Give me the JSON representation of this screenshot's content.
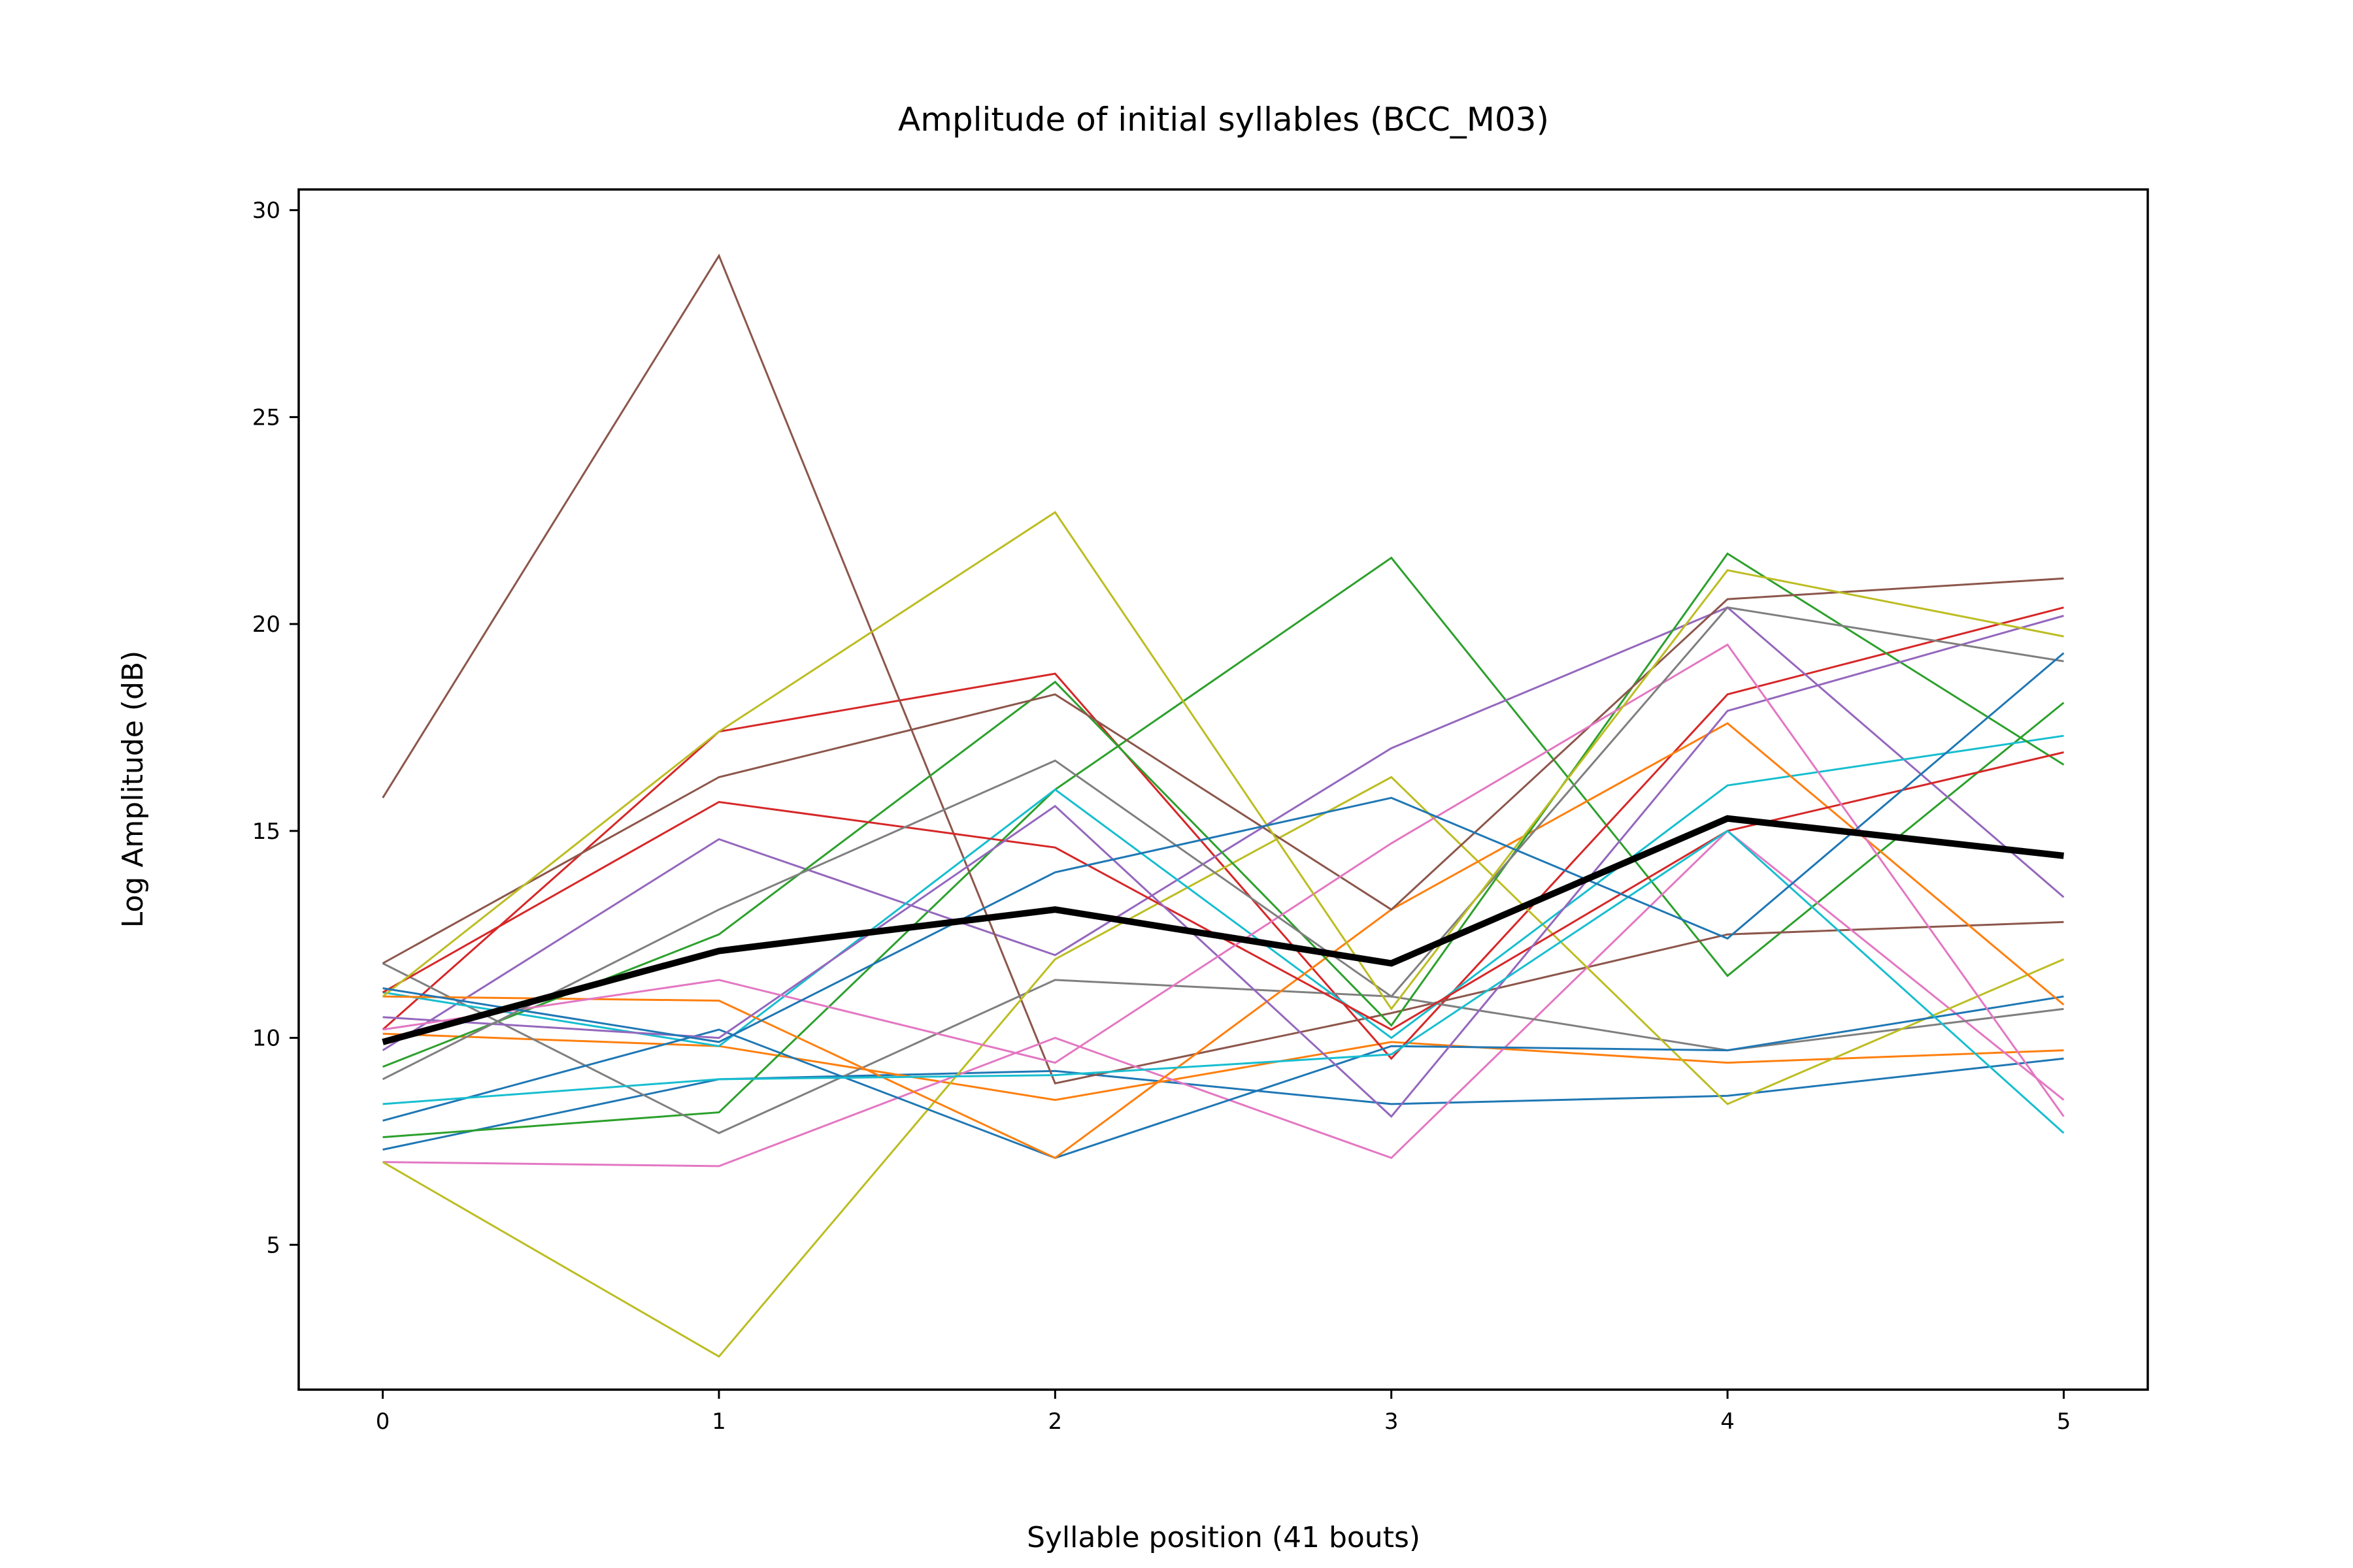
{
  "chart_data": {
    "type": "line",
    "title": "Amplitude of initial syllables (BCC_M03)",
    "xlabel": "Syllable position (41 bouts)",
    "ylabel": "Log Amplitude (dB)",
    "x": [
      0,
      1,
      2,
      3,
      4,
      5
    ],
    "xlim": [
      -0.25,
      5.25
    ],
    "ylim": [
      1.5,
      30.5
    ],
    "xticks": [
      "0",
      "1",
      "2",
      "3",
      "4",
      "5"
    ],
    "yticks": [
      "5",
      "10",
      "15",
      "20",
      "25",
      "30"
    ],
    "grid": false,
    "colors": {
      "blue": "#1f77b4",
      "orange": "#ff7f0e",
      "green": "#2ca02c",
      "red": "#d62728",
      "purple": "#9467bd",
      "brown": "#8c564b",
      "pink": "#e377c2",
      "gray": "#7f7f7f",
      "olive": "#bcbd22",
      "cyan": "#17becf",
      "mean": "#000000"
    },
    "series": [
      {
        "color": "#1f77b4",
        "values": [
          7.3,
          9.0,
          9.2,
          8.4,
          8.6,
          9.5
        ]
      },
      {
        "color": "#ff7f0e",
        "values": [
          10.1,
          9.8,
          8.5,
          9.9,
          9.4,
          9.7
        ]
      },
      {
        "color": "#2ca02c",
        "values": [
          7.6,
          8.2,
          16.0,
          21.6,
          11.5,
          18.1
        ]
      },
      {
        "color": "#d62728",
        "values": [
          10.2,
          17.4,
          18.8,
          9.5,
          18.3,
          20.4
        ]
      },
      {
        "color": "#9467bd",
        "values": [
          9.7,
          14.8,
          12.0,
          17.0,
          20.4,
          13.4
        ]
      },
      {
        "color": "#8c564b",
        "values": [
          15.8,
          28.9,
          8.9,
          10.6,
          12.5,
          12.8
        ]
      },
      {
        "color": "#e377c2",
        "values": [
          7.0,
          6.9,
          10.0,
          7.1,
          15.0,
          8.5
        ]
      },
      {
        "color": "#7f7f7f",
        "values": [
          11.8,
          7.7,
          11.4,
          11.0,
          9.7,
          10.7
        ]
      },
      {
        "color": "#bcbd22",
        "values": [
          7.0,
          2.3,
          11.9,
          16.3,
          8.4,
          11.9
        ]
      },
      {
        "color": "#17becf",
        "values": [
          11.1,
          9.8,
          16.0,
          10.0,
          16.1,
          17.3
        ]
      },
      {
        "color": "#1f77b4",
        "values": [
          8.0,
          10.2,
          7.1,
          9.8,
          9.7,
          11.0
        ]
      },
      {
        "color": "#ff7f0e",
        "values": [
          11.0,
          10.9,
          7.1,
          13.1,
          17.6,
          10.8
        ]
      },
      {
        "color": "#2ca02c",
        "values": [
          9.3,
          12.5,
          18.6,
          10.3,
          21.7,
          16.6
        ]
      },
      {
        "color": "#d62728",
        "values": [
          11.1,
          15.7,
          14.6,
          10.2,
          15.0,
          16.9
        ]
      },
      {
        "color": "#9467bd",
        "values": [
          10.5,
          10.0,
          15.6,
          8.1,
          17.9,
          20.2
        ]
      },
      {
        "color": "#8c564b",
        "values": [
          11.8,
          16.3,
          18.3,
          13.1,
          20.6,
          21.1
        ]
      },
      {
        "color": "#e377c2",
        "values": [
          10.2,
          11.4,
          9.4,
          14.7,
          19.5,
          8.1
        ]
      },
      {
        "color": "#7f7f7f",
        "values": [
          9.0,
          13.1,
          16.7,
          11.0,
          20.4,
          19.1
        ]
      },
      {
        "color": "#bcbd22",
        "values": [
          11.0,
          17.4,
          22.7,
          10.7,
          21.3,
          19.7
        ]
      },
      {
        "color": "#17becf",
        "values": [
          8.4,
          9.0,
          9.1,
          9.6,
          15.0,
          7.7
        ]
      },
      {
        "color": "#1f77b4",
        "values": [
          11.2,
          9.9,
          14.0,
          15.8,
          12.4,
          19.3
        ]
      }
    ],
    "mean": {
      "color": "#000000",
      "values": [
        9.9,
        12.1,
        13.1,
        11.8,
        15.3,
        14.4
      ]
    }
  }
}
